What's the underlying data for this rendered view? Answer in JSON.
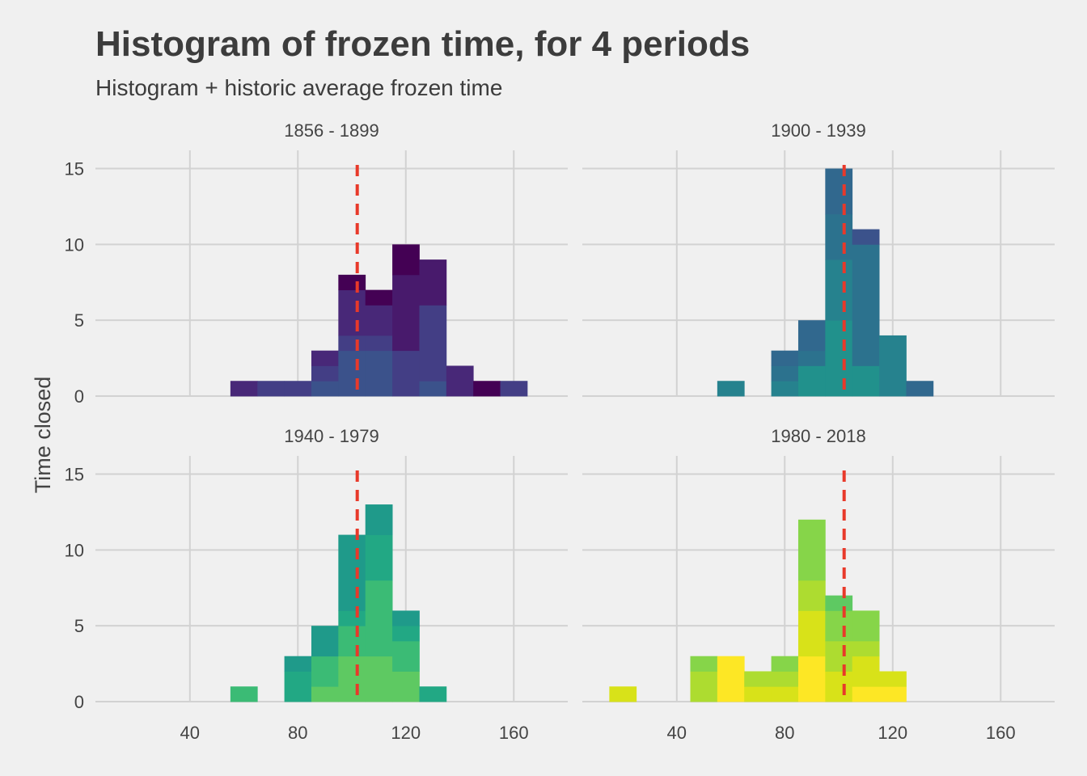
{
  "title": "Histogram of frozen time, for 4 periods",
  "subtitle": "Histogram + historic average frozen time",
  "colors": {
    "background": "#f0f0f0",
    "grid": "#d2d2d2",
    "mean_line": "#e8392a"
  },
  "chart_data": {
    "type": "bar",
    "ylabel": "Time closed",
    "xlabel": "",
    "x_ticks": [
      40,
      80,
      120,
      160
    ],
    "y_ticks": [
      0,
      5,
      10,
      15
    ],
    "xlim": [
      5,
      180
    ],
    "ylim": [
      0,
      16.2
    ],
    "bin_width": 10,
    "mean_line_x": 102,
    "panels": [
      {
        "label": "1856 - 1899",
        "bins": [
          {
            "x": 60,
            "segs": [
              [
                1,
                "#482878"
              ]
            ]
          },
          {
            "x": 70,
            "segs": [
              [
                1,
                "#433e85"
              ]
            ]
          },
          {
            "x": 80,
            "segs": [
              [
                1,
                "#433e85"
              ]
            ]
          },
          {
            "x": 90,
            "segs": [
              [
                1,
                "#3b528b"
              ],
              [
                1,
                "#433e85"
              ],
              [
                1,
                "#482878"
              ]
            ]
          },
          {
            "x": 100,
            "segs": [
              [
                3,
                "#3b528b"
              ],
              [
                1,
                "#433e85"
              ],
              [
                3,
                "#482878"
              ],
              [
                1,
                "#440154"
              ]
            ]
          },
          {
            "x": 110,
            "segs": [
              [
                3,
                "#3b528b"
              ],
              [
                1,
                "#433e85"
              ],
              [
                2,
                "#482878"
              ],
              [
                1,
                "#440154"
              ]
            ]
          },
          {
            "x": 120,
            "segs": [
              [
                3,
                "#433e85"
              ],
              [
                5,
                "#481a6c"
              ],
              [
                2,
                "#440154"
              ]
            ]
          },
          {
            "x": 130,
            "segs": [
              [
                1,
                "#3b528b"
              ],
              [
                5,
                "#433e85"
              ],
              [
                3,
                "#481a6c"
              ]
            ]
          },
          {
            "x": 140,
            "segs": [
              [
                2,
                "#482878"
              ]
            ]
          },
          {
            "x": 150,
            "segs": [
              [
                1,
                "#440154"
              ]
            ]
          },
          {
            "x": 160,
            "segs": [
              [
                1,
                "#433e85"
              ]
            ]
          }
        ]
      },
      {
        "label": "1900 - 1939",
        "bins": [
          {
            "x": 60,
            "segs": [
              [
                1,
                "#26828e"
              ]
            ]
          },
          {
            "x": 80,
            "segs": [
              [
                1,
                "#26828e"
              ],
              [
                1,
                "#2c728e"
              ],
              [
                1,
                "#31688e"
              ]
            ]
          },
          {
            "x": 90,
            "segs": [
              [
                2,
                "#21918c"
              ],
              [
                1,
                "#2c728e"
              ],
              [
                2,
                "#31688e"
              ]
            ]
          },
          {
            "x": 100,
            "segs": [
              [
                5,
                "#21918c"
              ],
              [
                4,
                "#26828e"
              ],
              [
                3,
                "#2c728e"
              ],
              [
                3,
                "#31688e"
              ]
            ]
          },
          {
            "x": 110,
            "segs": [
              [
                2,
                "#21918c"
              ],
              [
                8,
                "#2c728e"
              ],
              [
                1,
                "#3b528b"
              ]
            ]
          },
          {
            "x": 120,
            "segs": [
              [
                4,
                "#26828e"
              ]
            ]
          },
          {
            "x": 130,
            "segs": [
              [
                1,
                "#31688e"
              ]
            ]
          }
        ]
      },
      {
        "label": "1940 - 1979",
        "bins": [
          {
            "x": 60,
            "segs": [
              [
                1,
                "#3bbb75"
              ]
            ]
          },
          {
            "x": 80,
            "segs": [
              [
                2,
                "#22a884"
              ],
              [
                1,
                "#1f9a8a"
              ]
            ]
          },
          {
            "x": 90,
            "segs": [
              [
                1,
                "#5ec962"
              ],
              [
                2,
                "#3bbb75"
              ],
              [
                2,
                "#1f9a8a"
              ]
            ]
          },
          {
            "x": 100,
            "segs": [
              [
                3,
                "#5ec962"
              ],
              [
                2,
                "#3bbb75"
              ],
              [
                1,
                "#22a884"
              ],
              [
                5,
                "#1f9a8a"
              ]
            ]
          },
          {
            "x": 110,
            "segs": [
              [
                3,
                "#5ec962"
              ],
              [
                5,
                "#3bbb75"
              ],
              [
                3,
                "#22a884"
              ],
              [
                2,
                "#1f9a8a"
              ]
            ]
          },
          {
            "x": 120,
            "segs": [
              [
                2,
                "#5ec962"
              ],
              [
                2,
                "#3bbb75"
              ],
              [
                1,
                "#22a884"
              ],
              [
                1,
                "#1f9a8a"
              ]
            ]
          },
          {
            "x": 130,
            "segs": [
              [
                1,
                "#22a884"
              ]
            ]
          }
        ]
      },
      {
        "label": "1980 - 2018",
        "bins": [
          {
            "x": 20,
            "segs": [
              [
                1,
                "#d8e219"
              ]
            ]
          },
          {
            "x": 50,
            "segs": [
              [
                2,
                "#addc30"
              ],
              [
                1,
                "#86d549"
              ]
            ]
          },
          {
            "x": 60,
            "segs": [
              [
                3,
                "#fde725"
              ]
            ]
          },
          {
            "x": 70,
            "segs": [
              [
                1,
                "#d8e219"
              ],
              [
                1,
                "#addc30"
              ]
            ]
          },
          {
            "x": 80,
            "segs": [
              [
                1,
                "#d8e219"
              ],
              [
                1,
                "#addc30"
              ],
              [
                1,
                "#86d549"
              ]
            ]
          },
          {
            "x": 90,
            "segs": [
              [
                3,
                "#fde725"
              ],
              [
                3,
                "#d8e219"
              ],
              [
                2,
                "#addc30"
              ],
              [
                4,
                "#86d549"
              ]
            ]
          },
          {
            "x": 100,
            "segs": [
              [
                2,
                "#d8e219"
              ],
              [
                2,
                "#addc30"
              ],
              [
                2,
                "#86d549"
              ],
              [
                1,
                "#5ec962"
              ]
            ]
          },
          {
            "x": 110,
            "segs": [
              [
                1,
                "#fde725"
              ],
              [
                2,
                "#d8e219"
              ],
              [
                1,
                "#addc30"
              ],
              [
                2,
                "#86d549"
              ]
            ]
          },
          {
            "x": 120,
            "segs": [
              [
                1,
                "#fde725"
              ],
              [
                1,
                "#d8e219"
              ]
            ]
          }
        ]
      }
    ]
  }
}
